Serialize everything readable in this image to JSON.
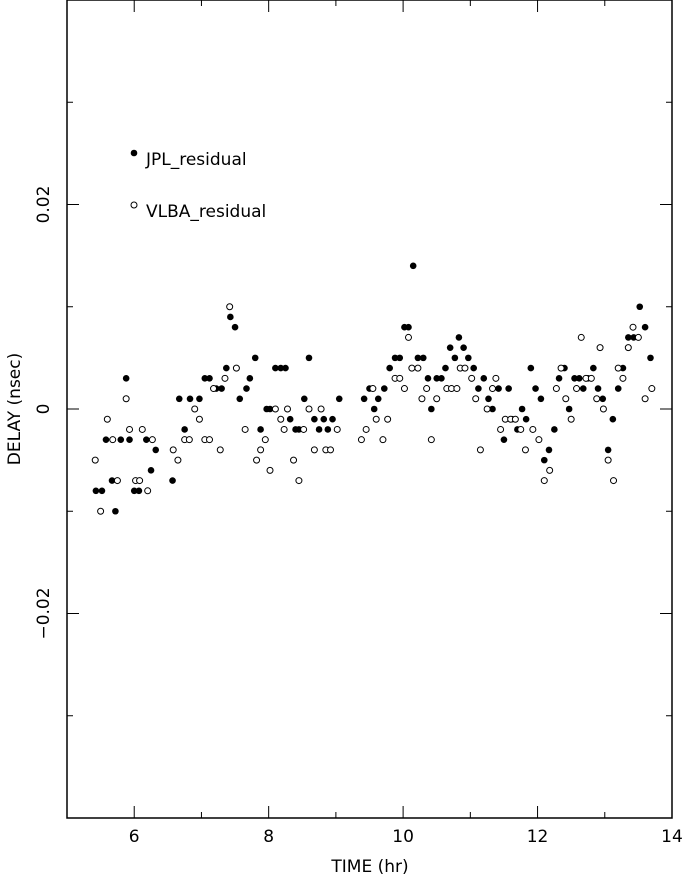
{
  "chart_data": {
    "type": "scatter",
    "xlabel": "TIME (hr)",
    "ylabel": "DELAY (nsec)",
    "xlim": [
      5,
      14
    ],
    "ylim": [
      -0.04,
      0.04
    ],
    "x_ticks": [
      6,
      8,
      10,
      12,
      14
    ],
    "x_tick_labels": [
      "6",
      "8",
      "10",
      "12",
      "14"
    ],
    "y_ticks": [
      -0.02,
      0,
      0.02
    ],
    "y_tick_labels": [
      "−0.02",
      "0",
      "0.02"
    ],
    "grid": false,
    "legend_position": "upper-left",
    "series": [
      {
        "name": "JPL_residual",
        "marker": "filled-circle",
        "color": "#000000",
        "points": [
          [
            5.43,
            -0.008
          ],
          [
            5.52,
            -0.008
          ],
          [
            5.58,
            -0.003
          ],
          [
            5.67,
            -0.007
          ],
          [
            5.72,
            -0.01
          ],
          [
            5.8,
            -0.003
          ],
          [
            5.88,
            0.003
          ],
          [
            5.93,
            -0.003
          ],
          [
            6.0,
            -0.008
          ],
          [
            6.07,
            -0.008
          ],
          [
            6.18,
            -0.003
          ],
          [
            6.25,
            -0.006
          ],
          [
            6.32,
            -0.004
          ],
          [
            6.57,
            -0.007
          ],
          [
            6.67,
            0.001
          ],
          [
            6.75,
            -0.002
          ],
          [
            6.83,
            0.001
          ],
          [
            6.97,
            0.001
          ],
          [
            7.05,
            0.003
          ],
          [
            7.12,
            0.003
          ],
          [
            7.22,
            0.002
          ],
          [
            7.3,
            0.002
          ],
          [
            7.37,
            0.004
          ],
          [
            7.43,
            0.009
          ],
          [
            7.5,
            0.008
          ],
          [
            7.57,
            0.001
          ],
          [
            7.67,
            0.002
          ],
          [
            7.72,
            0.003
          ],
          [
            7.8,
            0.005
          ],
          [
            7.88,
            -0.002
          ],
          [
            7.97,
            0.0
          ],
          [
            8.02,
            0.0
          ],
          [
            8.1,
            0.004
          ],
          [
            8.18,
            0.004
          ],
          [
            8.25,
            0.004
          ],
          [
            8.32,
            -0.001
          ],
          [
            8.4,
            -0.002
          ],
          [
            8.45,
            -0.002
          ],
          [
            8.53,
            0.001
          ],
          [
            8.6,
            0.005
          ],
          [
            8.68,
            -0.001
          ],
          [
            8.75,
            -0.002
          ],
          [
            8.82,
            -0.001
          ],
          [
            8.88,
            -0.002
          ],
          [
            8.95,
            -0.001
          ],
          [
            9.05,
            0.001
          ],
          [
            9.42,
            0.001
          ],
          [
            9.5,
            0.002
          ],
          [
            9.57,
            0.0
          ],
          [
            9.63,
            0.001
          ],
          [
            9.72,
            0.002
          ],
          [
            9.8,
            0.004
          ],
          [
            9.88,
            0.005
          ],
          [
            9.95,
            0.005
          ],
          [
            10.02,
            0.008
          ],
          [
            10.08,
            0.008
          ],
          [
            10.15,
            0.014
          ],
          [
            10.22,
            0.005
          ],
          [
            10.3,
            0.005
          ],
          [
            10.37,
            0.003
          ],
          [
            10.42,
            0.0
          ],
          [
            10.5,
            0.003
          ],
          [
            10.57,
            0.003
          ],
          [
            10.63,
            0.004
          ],
          [
            10.7,
            0.006
          ],
          [
            10.77,
            0.005
          ],
          [
            10.83,
            0.007
          ],
          [
            10.9,
            0.006
          ],
          [
            10.97,
            0.005
          ],
          [
            11.05,
            0.004
          ],
          [
            11.12,
            0.002
          ],
          [
            11.2,
            0.003
          ],
          [
            11.27,
            0.001
          ],
          [
            11.33,
            0.0
          ],
          [
            11.42,
            0.002
          ],
          [
            11.5,
            -0.003
          ],
          [
            11.57,
            0.002
          ],
          [
            11.62,
            -0.001
          ],
          [
            11.7,
            -0.002
          ],
          [
            11.77,
            0.0
          ],
          [
            11.83,
            -0.001
          ],
          [
            11.9,
            0.004
          ],
          [
            11.97,
            0.002
          ],
          [
            12.05,
            0.001
          ],
          [
            12.1,
            -0.005
          ],
          [
            12.17,
            -0.004
          ],
          [
            12.25,
            -0.002
          ],
          [
            12.32,
            0.003
          ],
          [
            12.4,
            0.004
          ],
          [
            12.47,
            0.0
          ],
          [
            12.55,
            0.003
          ],
          [
            12.62,
            0.003
          ],
          [
            12.68,
            0.002
          ],
          [
            12.75,
            0.003
          ],
          [
            12.83,
            0.004
          ],
          [
            12.9,
            0.002
          ],
          [
            12.97,
            0.001
          ],
          [
            13.05,
            -0.004
          ],
          [
            13.12,
            -0.001
          ],
          [
            13.2,
            0.002
          ],
          [
            13.27,
            0.004
          ],
          [
            13.35,
            0.007
          ],
          [
            13.43,
            0.007
          ],
          [
            13.52,
            0.01
          ],
          [
            13.6,
            0.008
          ],
          [
            13.68,
            0.005
          ]
        ]
      },
      {
        "name": "VLBA_residual",
        "marker": "open-circle",
        "color": "#000000",
        "points": [
          [
            5.42,
            -0.005
          ],
          [
            5.5,
            -0.01
          ],
          [
            5.6,
            -0.001
          ],
          [
            5.68,
            -0.003
          ],
          [
            5.75,
            -0.007
          ],
          [
            5.88,
            0.001
          ],
          [
            5.93,
            -0.002
          ],
          [
            6.02,
            -0.007
          ],
          [
            6.08,
            -0.007
          ],
          [
            6.12,
            -0.002
          ],
          [
            6.2,
            -0.008
          ],
          [
            6.27,
            -0.003
          ],
          [
            6.58,
            -0.004
          ],
          [
            6.65,
            -0.005
          ],
          [
            6.75,
            -0.003
          ],
          [
            6.82,
            -0.003
          ],
          [
            6.9,
            0.0
          ],
          [
            6.97,
            -0.001
          ],
          [
            7.05,
            -0.003
          ],
          [
            7.12,
            -0.003
          ],
          [
            7.18,
            0.002
          ],
          [
            7.28,
            -0.004
          ],
          [
            7.35,
            0.003
          ],
          [
            7.42,
            0.01
          ],
          [
            7.52,
            0.004
          ],
          [
            7.65,
            -0.002
          ],
          [
            7.82,
            -0.005
          ],
          [
            7.88,
            -0.004
          ],
          [
            7.95,
            -0.003
          ],
          [
            8.02,
            -0.006
          ],
          [
            8.1,
            0.0
          ],
          [
            8.18,
            -0.001
          ],
          [
            8.23,
            -0.002
          ],
          [
            8.28,
            0.0
          ],
          [
            8.37,
            -0.005
          ],
          [
            8.45,
            -0.007
          ],
          [
            8.52,
            -0.002
          ],
          [
            8.6,
            0.0
          ],
          [
            8.68,
            -0.004
          ],
          [
            8.78,
            0.0
          ],
          [
            8.85,
            -0.004
          ],
          [
            8.92,
            -0.004
          ],
          [
            9.02,
            -0.002
          ],
          [
            9.38,
            -0.003
          ],
          [
            9.45,
            -0.002
          ],
          [
            9.55,
            0.002
          ],
          [
            9.6,
            -0.001
          ],
          [
            9.7,
            -0.003
          ],
          [
            9.77,
            -0.001
          ],
          [
            9.88,
            0.003
          ],
          [
            9.95,
            0.003
          ],
          [
            10.02,
            0.002
          ],
          [
            10.08,
            0.007
          ],
          [
            10.13,
            0.004
          ],
          [
            10.22,
            0.004
          ],
          [
            10.28,
            0.001
          ],
          [
            10.35,
            0.002
          ],
          [
            10.42,
            -0.003
          ],
          [
            10.5,
            0.001
          ],
          [
            10.65,
            0.002
          ],
          [
            10.72,
            0.002
          ],
          [
            10.8,
            0.002
          ],
          [
            10.85,
            0.004
          ],
          [
            10.92,
            0.004
          ],
          [
            11.02,
            0.003
          ],
          [
            11.08,
            0.001
          ],
          [
            11.15,
            -0.004
          ],
          [
            11.25,
            0.0
          ],
          [
            11.33,
            0.002
          ],
          [
            11.38,
            0.003
          ],
          [
            11.45,
            -0.002
          ],
          [
            11.52,
            -0.001
          ],
          [
            11.6,
            -0.001
          ],
          [
            11.67,
            -0.001
          ],
          [
            11.75,
            -0.002
          ],
          [
            11.82,
            -0.004
          ],
          [
            11.93,
            -0.002
          ],
          [
            12.02,
            -0.003
          ],
          [
            12.1,
            -0.007
          ],
          [
            12.18,
            -0.006
          ],
          [
            12.28,
            0.002
          ],
          [
            12.35,
            0.004
          ],
          [
            12.42,
            0.001
          ],
          [
            12.5,
            -0.001
          ],
          [
            12.58,
            0.002
          ],
          [
            12.65,
            0.007
          ],
          [
            12.72,
            0.003
          ],
          [
            12.8,
            0.003
          ],
          [
            12.88,
            0.001
          ],
          [
            12.93,
            0.006
          ],
          [
            12.98,
            0.0
          ],
          [
            13.05,
            -0.005
          ],
          [
            13.13,
            -0.007
          ],
          [
            13.2,
            0.004
          ],
          [
            13.27,
            0.003
          ],
          [
            13.35,
            0.006
          ],
          [
            13.42,
            0.008
          ],
          [
            13.5,
            0.007
          ],
          [
            13.6,
            0.001
          ],
          [
            13.7,
            0.002
          ]
        ]
      }
    ]
  }
}
